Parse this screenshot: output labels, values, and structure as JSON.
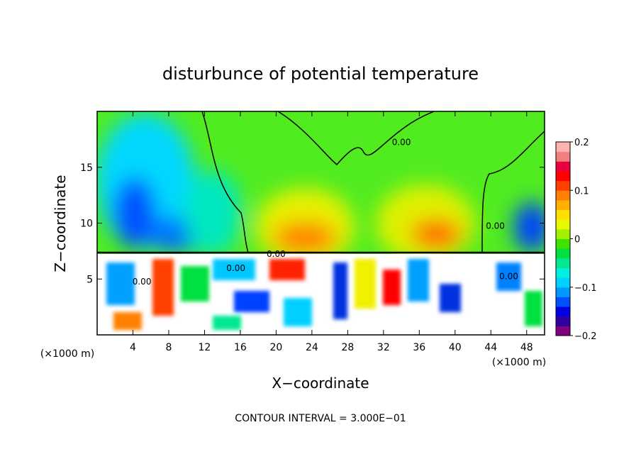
{
  "chart_data": {
    "type": "heatmap",
    "title": "disturbunce of potential temperature",
    "xlabel": "X−coordinate",
    "ylabel": "Z−coordinate",
    "x_unit": "(×1000 m)",
    "x_unit_right": "(×1000 m)",
    "xlim": [
      0,
      50
    ],
    "ylim": [
      0,
      20
    ],
    "x_ticks": [
      4,
      8,
      12,
      16,
      20,
      24,
      28,
      32,
      36,
      40,
      44,
      48
    ],
    "y_ticks": [
      5,
      10,
      15
    ],
    "colorbar": {
      "range": [
        -0.2,
        0.2
      ],
      "tick_values": [
        0.2,
        0.1,
        0,
        -0.1,
        -0.2
      ],
      "tick_labels": [
        "0.2",
        "0.1",
        "0",
        "−0.1",
        "−0.2"
      ],
      "colors": [
        "#800080",
        "#3000a0",
        "#0000e0",
        "#0050ff",
        "#0098ff",
        "#00d0ff",
        "#00f0e0",
        "#00e890",
        "#00e040",
        "#40e000",
        "#a0f000",
        "#e8f800",
        "#ffe000",
        "#ffb000",
        "#ff8000",
        "#ff4000",
        "#ff0000",
        "#e80040",
        "#f08080",
        "#ffb0b0"
      ]
    },
    "contour_labels": [
      {
        "text": "0.00",
        "x": 34.0,
        "y": 17.0
      },
      {
        "text": "0.00",
        "x": 44.5,
        "y": 9.5
      },
      {
        "text": "0.00",
        "x": 15.5,
        "y": 5.7
      },
      {
        "text": "0.00",
        "x": 20.0,
        "y": 7.0
      },
      {
        "text": "0.00",
        "x": 5.0,
        "y": 4.5
      },
      {
        "text": "0.00",
        "x": 46.0,
        "y": 5.0
      }
    ],
    "contour_interval_text": "CONTOUR INTERVAL = 3.000E−01"
  }
}
